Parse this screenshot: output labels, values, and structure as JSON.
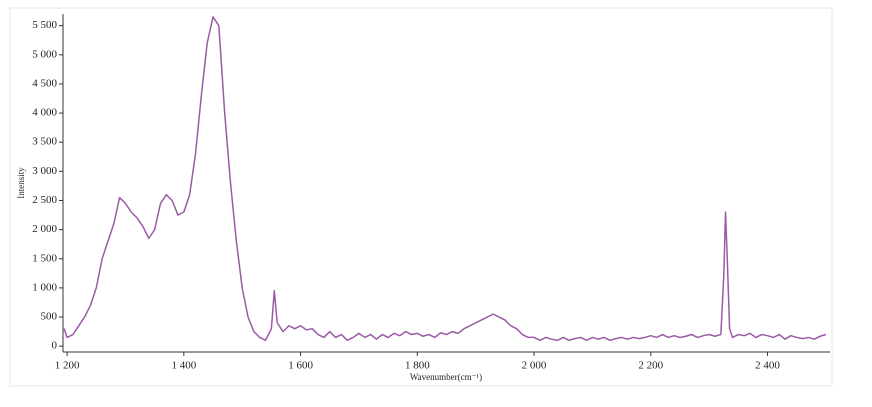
{
  "chart_data": {
    "type": "line",
    "x_label": "Wavenumber(cm⁻¹)",
    "y_label": "Intensity",
    "xlim": [
      1193,
      2507
    ],
    "ylim": [
      -100,
      5700
    ],
    "xticks": [
      {
        "value": 1200,
        "label": "1 200"
      },
      {
        "value": 1400,
        "label": "1 400"
      },
      {
        "value": 1600,
        "label": "1 600"
      },
      {
        "value": 1800,
        "label": "1 800"
      },
      {
        "value": 2000,
        "label": "2 000"
      },
      {
        "value": 2200,
        "label": "2 200"
      },
      {
        "value": 2400,
        "label": "2 400"
      }
    ],
    "yticks": [
      0,
      500,
      {
        "value": 1000,
        "label": "1 000"
      },
      {
        "value": 1500,
        "label": "1 500"
      },
      {
        "value": 2000,
        "label": "2 000"
      },
      {
        "value": 2500,
        "label": "2 500"
      },
      {
        "value": 3000,
        "label": "3 000"
      },
      {
        "value": 3500,
        "label": "3 500"
      },
      {
        "value": 4000,
        "label": "4 000"
      },
      {
        "value": 4500,
        "label": "4 500"
      },
      {
        "value": 5000,
        "label": "5 000"
      },
      {
        "value": 5500,
        "label": "5 500"
      }
    ],
    "x": [
      1195,
      1200,
      1210,
      1220,
      1230,
      1240,
      1250,
      1260,
      1270,
      1280,
      1290,
      1300,
      1310,
      1320,
      1330,
      1340,
      1350,
      1360,
      1370,
      1380,
      1390,
      1400,
      1410,
      1420,
      1430,
      1440,
      1450,
      1460,
      1470,
      1480,
      1490,
      1500,
      1510,
      1520,
      1530,
      1540,
      1550,
      1555,
      1560,
      1570,
      1580,
      1590,
      1600,
      1610,
      1620,
      1630,
      1640,
      1650,
      1660,
      1670,
      1680,
      1690,
      1700,
      1710,
      1720,
      1730,
      1740,
      1750,
      1760,
      1770,
      1780,
      1790,
      1800,
      1810,
      1820,
      1830,
      1840,
      1850,
      1860,
      1870,
      1880,
      1890,
      1900,
      1910,
      1920,
      1930,
      1940,
      1950,
      1960,
      1970,
      1980,
      1990,
      2000,
      2010,
      2020,
      2030,
      2040,
      2050,
      2060,
      2070,
      2080,
      2090,
      2100,
      2110,
      2120,
      2130,
      2140,
      2150,
      2160,
      2170,
      2180,
      2190,
      2200,
      2210,
      2220,
      2230,
      2240,
      2250,
      2260,
      2270,
      2280,
      2290,
      2300,
      2310,
      2320,
      2325,
      2328,
      2331,
      2335,
      2340,
      2350,
      2360,
      2370,
      2380,
      2390,
      2400,
      2410,
      2420,
      2430,
      2440,
      2450,
      2460,
      2470,
      2480,
      2490,
      2500
    ],
    "series": [
      {
        "color": "#9b5aa6",
        "values": [
          300,
          150,
          200,
          350,
          500,
          700,
          1000,
          1500,
          1800,
          2100,
          2550,
          2450,
          2300,
          2200,
          2050,
          1850,
          2000,
          2450,
          2600,
          2500,
          2250,
          2300,
          2600,
          3300,
          4300,
          5200,
          5650,
          5500,
          4000,
          2800,
          1800,
          1000,
          500,
          250,
          150,
          100,
          300,
          950,
          400,
          250,
          350,
          300,
          350,
          280,
          300,
          200,
          150,
          250,
          150,
          200,
          100,
          150,
          220,
          150,
          200,
          120,
          200,
          150,
          220,
          180,
          250,
          200,
          220,
          170,
          200,
          150,
          230,
          200,
          250,
          220,
          300,
          350,
          400,
          450,
          500,
          550,
          500,
          450,
          350,
          300,
          200,
          150,
          150,
          100,
          150,
          120,
          100,
          150,
          100,
          130,
          150,
          100,
          150,
          120,
          150,
          100,
          130,
          150,
          120,
          150,
          130,
          150,
          180,
          150,
          200,
          150,
          180,
          150,
          170,
          200,
          150,
          180,
          200,
          170,
          200,
          1200,
          2300,
          1500,
          300,
          150,
          200,
          180,
          220,
          150,
          200,
          180,
          150,
          200,
          120,
          180,
          150,
          130,
          150,
          120,
          170,
          200
        ]
      }
    ]
  }
}
